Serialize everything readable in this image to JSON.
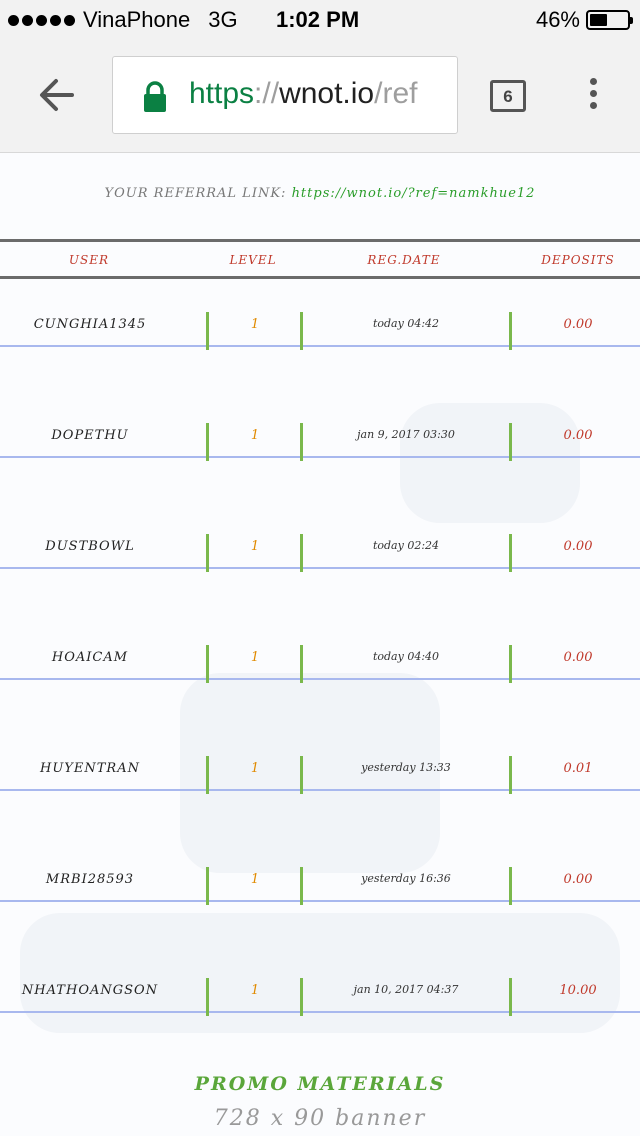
{
  "status_bar": {
    "carrier": "VinaPhone",
    "network": "3G",
    "time": "1:02 PM",
    "battery_percent": "46%",
    "battery_level": 0.46
  },
  "browser": {
    "url_scheme": "https",
    "url_sep": "://",
    "url_host": "wnot.io",
    "url_path": "/ref",
    "tab_count": "6"
  },
  "referral": {
    "label": "YOUR REFERRAL LINK:",
    "link": "https://wnot.io/?ref=namkhue12"
  },
  "table": {
    "headers": {
      "user": "USER",
      "level": "LEVEL",
      "regdate": "REG.DATE",
      "deposits": "DEPOSITS"
    },
    "rows": [
      {
        "user": "CUNGHIA1345",
        "level": "1",
        "regdate": "today 04:42",
        "deposits": "0.00"
      },
      {
        "user": "DOPETHU",
        "level": "1",
        "regdate": "jan 9, 2017 03:30",
        "deposits": "0.00"
      },
      {
        "user": "DUSTBOWL",
        "level": "1",
        "regdate": "today 02:24",
        "deposits": "0.00"
      },
      {
        "user": "HOAICAM",
        "level": "1",
        "regdate": "today 04:40",
        "deposits": "0.00"
      },
      {
        "user": "HUYENTRAN",
        "level": "1",
        "regdate": "yesterday 13:33",
        "deposits": "0.01"
      },
      {
        "user": "MRBI28593",
        "level": "1",
        "regdate": "yesterday 16:36",
        "deposits": "0.00"
      },
      {
        "user": "NHATHOANGSON",
        "level": "1",
        "regdate": "jan 10, 2017 04:37",
        "deposits": "10.00"
      }
    ]
  },
  "promo": {
    "title": "PROMO MATERIALS",
    "subtitle": "728 x 90 banner"
  }
}
